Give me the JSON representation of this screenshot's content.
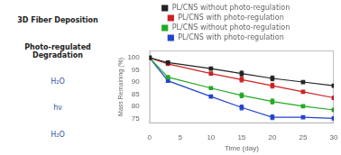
{
  "chart_data": {
    "type": "line",
    "annotations": [
      "3D Fiber Deposition",
      "Photo-regulated Degradation",
      "H₂O",
      "hν",
      "H₂O"
    ],
    "xlabel": "Time (day)",
    "ylabel": "Mass Remaining (%)",
    "x": [
      0,
      3,
      10,
      15,
      20,
      25,
      30
    ],
    "xlim": [
      0,
      30
    ],
    "ylim": [
      73,
      103
    ],
    "xticks": [
      0,
      5,
      10,
      15,
      20,
      25,
      30
    ],
    "yticks": [
      75,
      80,
      85,
      90,
      95,
      100
    ],
    "grid": false,
    "legend": "top",
    "marker": "square",
    "series": [
      {
        "name": "PL/CNS without photo-regulation",
        "color": "#222222",
        "values": [
          100,
          98,
          95.5,
          93.5,
          91.5,
          90.0,
          88.5
        ],
        "errors": [
          null,
          null,
          null,
          1.0,
          1.0,
          null,
          null
        ]
      },
      {
        "name": "PL/CNS with photo-regulation",
        "color": "#cc2222",
        "values": [
          100,
          97.5,
          93.5,
          91.0,
          88.5,
          86.0,
          83.5
        ],
        "errors": [
          null,
          null,
          null,
          1.0,
          1.0,
          null,
          null
        ]
      },
      {
        "name": "PL/CNS without photo-regulation",
        "color": "#22aa22",
        "values": [
          100,
          92.0,
          87.5,
          84.5,
          82.0,
          80.0,
          78.5
        ],
        "errors": [
          null,
          null,
          null,
          1.0,
          1.0,
          null,
          null
        ]
      },
      {
        "name": "PL/CNS with photo-regulation",
        "color": "#2244cc",
        "values": [
          100,
          90.5,
          84.0,
          79.5,
          75.5,
          75.5,
          75.0
        ],
        "errors": [
          null,
          null,
          null,
          1.0,
          1.0,
          null,
          null
        ]
      }
    ]
  }
}
